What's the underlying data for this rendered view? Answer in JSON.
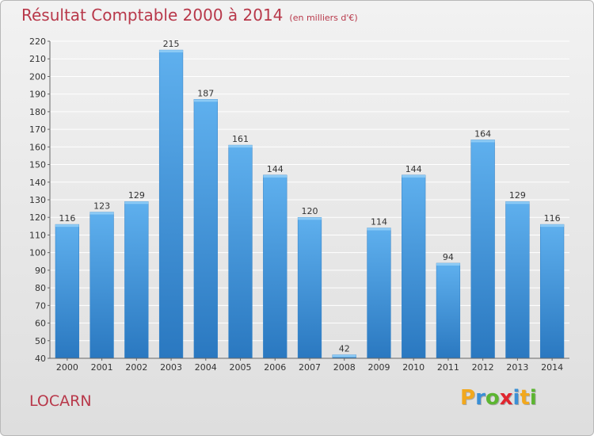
{
  "title": "Résultat Comptable 2000 à 2014",
  "unit": "(en milliers d'€)",
  "commune": "LOCARN",
  "brand": {
    "text": "Proxiti",
    "letters": [
      {
        "ch": "P",
        "color": "#f2a81d"
      },
      {
        "ch": "r",
        "color": "#3a8fd6"
      },
      {
        "ch": "o",
        "color": "#5cb531"
      },
      {
        "ch": "x",
        "color": "#e0262f"
      },
      {
        "ch": "i",
        "color": "#3a8fd6"
      },
      {
        "ch": "t",
        "color": "#f2a81d"
      },
      {
        "ch": "i",
        "color": "#5cb531"
      }
    ]
  },
  "colors": {
    "bar_top": "#5fb0ee",
    "bar_bottom": "#2a78c0",
    "title": "#b8384a",
    "axis_text": "#333333",
    "grid": "#ffffff"
  },
  "chart_data": {
    "type": "bar",
    "categories": [
      "2000",
      "2001",
      "2002",
      "2003",
      "2004",
      "2005",
      "2006",
      "2007",
      "2008",
      "2009",
      "2010",
      "2011",
      "2012",
      "2013",
      "2014"
    ],
    "values": [
      116,
      123,
      129,
      215,
      187,
      161,
      144,
      120,
      42,
      114,
      144,
      94,
      164,
      129,
      116
    ],
    "ylim": [
      40,
      220
    ],
    "ytick_step": 10,
    "grid": true,
    "data_labels": true
  }
}
